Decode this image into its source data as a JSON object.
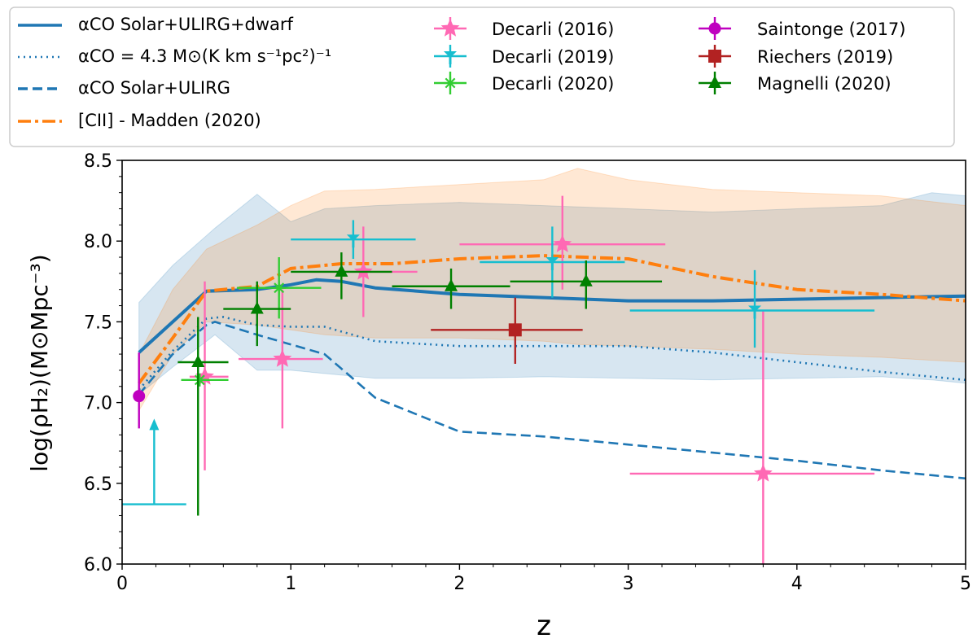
{
  "chart_data": {
    "type": "line",
    "xlabel": "z",
    "ylabel": "log(ρH₂)(M⊙Mpc⁻³)",
    "xlim": [
      0,
      5
    ],
    "ylim": [
      6.0,
      8.5
    ],
    "x_ticks": [
      0,
      1,
      2,
      3,
      4,
      5
    ],
    "x_tick_labels": [
      "0",
      "1",
      "2",
      "3",
      "4",
      "5"
    ],
    "y_ticks": [
      6.0,
      6.5,
      7.0,
      7.5,
      8.0,
      8.5
    ],
    "y_tick_labels": [
      "6.0",
      "6.5",
      "7.0",
      "7.5",
      "8.0",
      "8.5"
    ],
    "legend_position": "top",
    "colors": {
      "blue": "#1f77b4",
      "orange": "#ff7f0e",
      "pink": "#ff69b4",
      "cyan": "#17becf",
      "lime": "#32cd32",
      "magenta": "#bf00bf",
      "darkred": "#b22222",
      "darkgreen": "#008000"
    },
    "bands": [
      {
        "name": "αCO Solar+ULIRG+dwarf range",
        "color": "#1f77b4",
        "x": [
          0.1,
          0.3,
          0.55,
          0.8,
          1.0,
          1.2,
          1.5,
          2.0,
          2.5,
          3.0,
          3.5,
          4.0,
          4.5,
          4.8,
          5.0
        ],
        "upper": [
          7.62,
          7.85,
          8.08,
          8.29,
          8.12,
          8.2,
          8.22,
          8.24,
          8.22,
          8.2,
          8.18,
          8.2,
          8.22,
          8.3,
          8.28
        ],
        "lower": [
          7.05,
          7.22,
          7.42,
          7.2,
          7.2,
          7.18,
          7.15,
          7.15,
          7.16,
          7.15,
          7.14,
          7.15,
          7.16,
          7.14,
          7.12
        ]
      },
      {
        "name": "[CII] - Madden (2020) range",
        "color": "#ff7f0e",
        "x": [
          0.1,
          0.3,
          0.5,
          0.8,
          1.0,
          1.2,
          1.5,
          2.0,
          2.5,
          2.7,
          3.0,
          3.5,
          4.0,
          4.5,
          5.0
        ],
        "upper": [
          7.3,
          7.7,
          7.95,
          8.1,
          8.22,
          8.31,
          8.32,
          8.35,
          8.38,
          8.45,
          8.38,
          8.32,
          8.3,
          8.28,
          8.22
        ],
        "lower": [
          6.95,
          7.3,
          7.5,
          7.48,
          7.45,
          7.42,
          7.4,
          7.4,
          7.38,
          7.36,
          7.35,
          7.33,
          7.3,
          7.28,
          7.25
        ]
      }
    ],
    "series": [
      {
        "name": "αCO Solar+ULIRG+dwarf",
        "legend_label": "αCO Solar+ULIRG+dwarf",
        "style": "solid",
        "color": "#1f77b4",
        "x": [
          0.1,
          0.3,
          0.5,
          0.8,
          1.0,
          1.15,
          1.3,
          1.5,
          2.0,
          2.5,
          3.0,
          3.5,
          4.0,
          4.5,
          5.0
        ],
        "y": [
          7.31,
          7.5,
          7.69,
          7.7,
          7.73,
          7.76,
          7.75,
          7.71,
          7.67,
          7.65,
          7.63,
          7.63,
          7.64,
          7.65,
          7.66
        ]
      },
      {
        "name": "αCO = 4.3",
        "legend_label": "αCO = 4.3 M⊙(K km s⁻¹pc²)⁻¹",
        "style": "dotted",
        "color": "#1f77b4",
        "x": [
          0.1,
          0.3,
          0.5,
          0.6,
          0.8,
          1.0,
          1.2,
          1.5,
          2.0,
          2.5,
          3.0,
          3.5,
          4.0,
          4.5,
          5.0
        ],
        "y": [
          7.08,
          7.32,
          7.52,
          7.53,
          7.48,
          7.47,
          7.47,
          7.38,
          7.35,
          7.35,
          7.35,
          7.31,
          7.25,
          7.19,
          7.14
        ]
      },
      {
        "name": "αCO Solar+ULIRG",
        "legend_label": "αCO Solar+ULIRG",
        "style": "dashed",
        "color": "#1f77b4",
        "x": [
          0.1,
          0.3,
          0.5,
          0.55,
          0.8,
          1.0,
          1.2,
          1.5,
          2.0,
          2.5,
          3.0,
          3.5,
          4.0,
          4.5,
          5.0
        ],
        "y": [
          7.05,
          7.3,
          7.48,
          7.5,
          7.42,
          7.36,
          7.3,
          7.03,
          6.82,
          6.79,
          6.74,
          6.69,
          6.64,
          6.58,
          6.53
        ]
      },
      {
        "name": "[CII] - Madden (2020)",
        "legend_label": "[CII] - Madden (2020)",
        "style": "dashdot",
        "color": "#ff7f0e",
        "x": [
          0.1,
          0.3,
          0.5,
          0.8,
          1.0,
          1.3,
          1.6,
          2.0,
          2.5,
          3.0,
          3.5,
          4.0,
          4.5,
          5.0
        ],
        "y": [
          7.12,
          7.4,
          7.69,
          7.72,
          7.83,
          7.86,
          7.86,
          7.89,
          7.91,
          7.89,
          7.78,
          7.7,
          7.67,
          7.63
        ]
      }
    ],
    "observations": [
      {
        "name": "Decarli (2016)",
        "marker": "star",
        "color": "#ff69b4",
        "points": [
          {
            "x": 0.49,
            "y": 7.16,
            "xerr": [
              0.09,
              0.14
            ],
            "yerr": [
              0.58,
              0.59
            ]
          },
          {
            "x": 0.95,
            "y": 7.27,
            "xerr": [
              0.26,
              0.24
            ],
            "yerr": [
              0.43,
              0.43
            ]
          },
          {
            "x": 1.43,
            "y": 7.81,
            "xerr": [
              0.32,
              0.32
            ],
            "yerr": [
              0.28,
              0.28
            ]
          },
          {
            "x": 2.61,
            "y": 7.98,
            "xerr": [
              0.61,
              0.61
            ],
            "yerr": [
              0.28,
              0.3
            ]
          },
          {
            "x": 3.8,
            "y": 6.56,
            "xerr": [
              0.79,
              0.66
            ],
            "yerr": [
              0.56,
              1.01
            ]
          }
        ]
      },
      {
        "name": "Decarli (2019)",
        "marker": "tri_down",
        "color": "#17becf",
        "points": [
          {
            "x": 1.37,
            "y": 8.01,
            "xerr": [
              0.37,
              0.37
            ],
            "yerr": [
              0.12,
              0.12
            ]
          },
          {
            "x": 2.55,
            "y": 7.87,
            "xerr": [
              0.43,
              0.43
            ],
            "yerr": [
              0.22,
              0.22
            ]
          },
          {
            "x": 3.75,
            "y": 7.57,
            "xerr": [
              0.74,
              0.71
            ],
            "yerr": [
              0.23,
              0.25
            ]
          }
        ]
      },
      {
        "name": "Decarli (2020)",
        "marker": "asterisk",
        "color": "#32cd32",
        "points": [
          {
            "x": 0.46,
            "y": 7.14,
            "xerr": [
              0.11,
              0.17
            ],
            "yerr": [
              0.0,
              0.0
            ]
          },
          {
            "x": 0.93,
            "y": 7.71,
            "xerr": [
              0.25,
              0.25
            ],
            "yerr": [
              0.19,
              0.19
            ]
          }
        ]
      },
      {
        "name": "Saintonge (2017)",
        "marker": "circle",
        "color": "#bf00bf",
        "points": [
          {
            "x": 0.1,
            "y": 7.04,
            "xerr": [
              0.0,
              0.0
            ],
            "yerr": [
              0.2,
              0.27
            ]
          }
        ]
      },
      {
        "name": "Riechers (2019)",
        "marker": "square",
        "color": "#b22222",
        "points": [
          {
            "x": 2.33,
            "y": 7.45,
            "xerr": [
              0.5,
              0.4
            ],
            "yerr": [
              0.21,
              0.2
            ]
          }
        ]
      },
      {
        "name": "Magnelli (2020)",
        "marker": "triangle_up",
        "color": "#008000",
        "points": [
          {
            "x": 0.45,
            "y": 7.25,
            "xerr": [
              0.12,
              0.18
            ],
            "yerr": [
              0.95,
              0.28
            ]
          },
          {
            "x": 0.8,
            "y": 7.58,
            "xerr": [
              0.2,
              0.2
            ],
            "yerr": [
              0.23,
              0.17
            ]
          },
          {
            "x": 1.3,
            "y": 7.81,
            "xerr": [
              0.3,
              0.3
            ],
            "yerr": [
              0.17,
              0.12
            ]
          },
          {
            "x": 1.95,
            "y": 7.72,
            "xerr": [
              0.35,
              0.35
            ],
            "yerr": [
              0.14,
              0.11
            ]
          },
          {
            "x": 2.75,
            "y": 7.75,
            "xerr": [
              0.45,
              0.45
            ],
            "yerr": [
              0.17,
              0.13
            ]
          }
        ]
      }
    ],
    "lower_limit": {
      "name": "Decarli (2019) lower limit",
      "color": "#17becf",
      "x": 0.19,
      "y": 6.37,
      "xerr": [
        0.19,
        0.19
      ],
      "arrow_to": 6.88
    },
    "legend": {
      "col1": [
        "αCO Solar+ULIRG+dwarf",
        "αCO = 4.3 M⊙(K km s⁻¹pc²)⁻¹",
        "αCO Solar+ULIRG",
        "[CII] - Madden (2020)"
      ],
      "col2": [
        "Decarli (2016)",
        "Decarli (2019)",
        "Decarli (2020)"
      ],
      "col3": [
        "Saintonge (2017)",
        "Riechers (2019)",
        "Magnelli (2020)"
      ]
    }
  }
}
